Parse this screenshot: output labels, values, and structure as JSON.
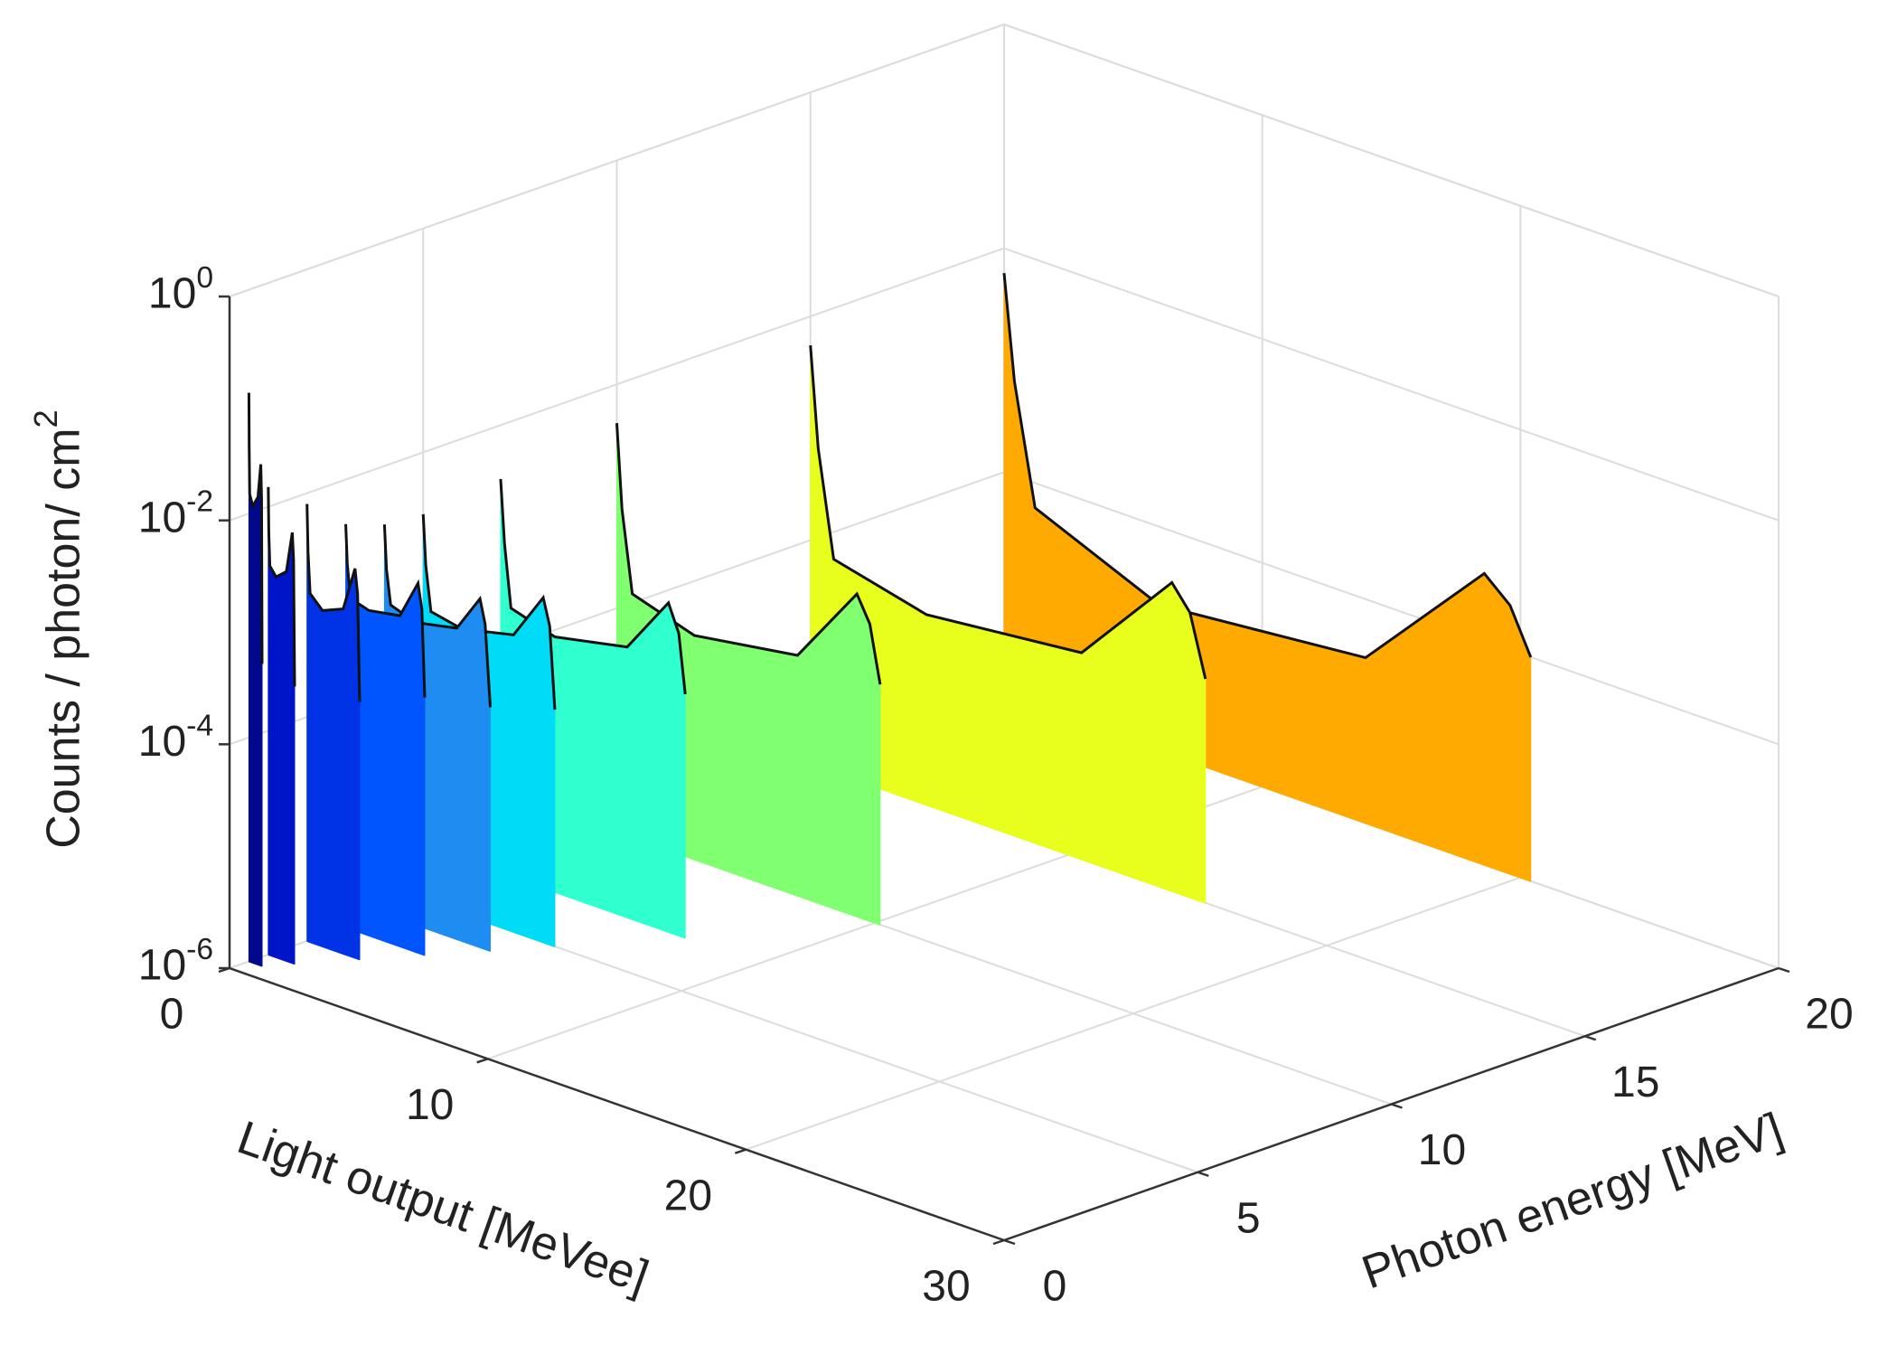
{
  "chart_data": {
    "type": "waterfall3d",
    "x_label": "Light output [MeVee]",
    "y_label": "Photon energy [MeV]",
    "z_label": "Counts / photon/ cm^2",
    "xlim": [
      0,
      30
    ],
    "xticks": [
      0,
      10,
      20,
      30
    ],
    "ylim": [
      0,
      20
    ],
    "yticks": [
      0,
      5,
      10,
      15,
      20
    ],
    "zlim": [
      1e-06,
      1
    ],
    "zscale": "log",
    "zticks": [
      {
        "value": 1e-06,
        "label": "10^-6"
      },
      {
        "value": 0.0001,
        "label": "10^-4"
      },
      {
        "value": 0.01,
        "label": "10^-2"
      },
      {
        "value": 1,
        "label": "10^0"
      }
    ],
    "grid": true,
    "series": [
      {
        "photon_energy": 0.5,
        "color": "#00088c",
        "x": [
          0,
          0.01,
          0.03,
          0.15,
          0.35,
          0.46,
          0.49,
          0.51
        ],
        "values": [
          0.12,
          0.04,
          0.015,
          0.012,
          0.015,
          0.03,
          0.015,
          0.0005
        ]
      },
      {
        "photon_energy": 1,
        "color": "#0014c8",
        "x": [
          0,
          0.02,
          0.06,
          0.3,
          0.7,
          0.93,
          0.98,
          1.02
        ],
        "values": [
          0.015,
          0.006,
          0.003,
          0.0025,
          0.003,
          0.007,
          0.004,
          0.0003
        ]
      },
      {
        "photon_energy": 2,
        "color": "#0032e6",
        "x": [
          0,
          0.04,
          0.12,
          0.6,
          1.4,
          1.86,
          1.96,
          2.04
        ],
        "values": [
          0.008,
          0.003,
          0.0013,
          0.001,
          0.0012,
          0.003,
          0.0018,
          0.0002
        ]
      },
      {
        "photon_energy": 3,
        "color": "#0055ff",
        "x": [
          0,
          0.06,
          0.18,
          0.9,
          2.1,
          2.8,
          2.95,
          3.06
        ],
        "values": [
          0.004,
          0.0018,
          0.0009,
          0.0008,
          0.0009,
          0.002,
          0.0012,
          0.0002
        ]
      },
      {
        "photon_energy": 4,
        "color": "#1e8cf0",
        "x": [
          0,
          0.08,
          0.24,
          1.2,
          2.8,
          3.7,
          3.9,
          4.1
        ],
        "values": [
          0.003,
          0.0012,
          0.0006,
          0.0005,
          0.0006,
          0.0013,
          0.0008,
          0.00015
        ]
      },
      {
        "photon_energy": 5,
        "color": "#00dcf8",
        "x": [
          0,
          0.1,
          0.3,
          1.5,
          3.5,
          4.65,
          4.9,
          5.1
        ],
        "values": [
          0.0028,
          0.001,
          0.0004,
          0.00035,
          0.00045,
          0.0012,
          0.0007,
          0.00013
        ]
      },
      {
        "photon_energy": 7,
        "color": "#30ffd0",
        "x": [
          0,
          0.15,
          0.4,
          2.1,
          4.9,
          6.5,
          6.9,
          7.15
        ],
        "values": [
          0.0033,
          0.0009,
          0.00025,
          0.00019,
          0.00026,
          0.00087,
          0.0005,
          0.00015
        ]
      },
      {
        "photon_energy": 10,
        "color": "#80ff70",
        "x": [
          0,
          0.2,
          0.6,
          3,
          7,
          9.3,
          9.8,
          10.2
        ],
        "values": [
          0.0045,
          0.0008,
          0.00015,
          0.0001,
          0.00014,
          0.00076,
          0.00045,
          0.00014
        ]
      },
      {
        "photon_energy": 15,
        "color": "#e8ff1e",
        "x": [
          0,
          0.3,
          0.9,
          4.5,
          10.5,
          14,
          14.7,
          15.3
        ],
        "values": [
          0.0055,
          0.0007,
          8e-05,
          5e-05,
          7e-05,
          0.00057,
          0.00035,
          0.0001
        ]
      },
      {
        "photon_energy": 20,
        "color": "#ffaa00",
        "x": [
          0,
          0.4,
          1.2,
          6,
          14,
          18.6,
          19.6,
          20.4
        ],
        "values": [
          0.006,
          0.0007,
          6e-05,
          2e-05,
          3e-05,
          0.0004,
          0.00025,
          0.0001
        ]
      }
    ]
  }
}
